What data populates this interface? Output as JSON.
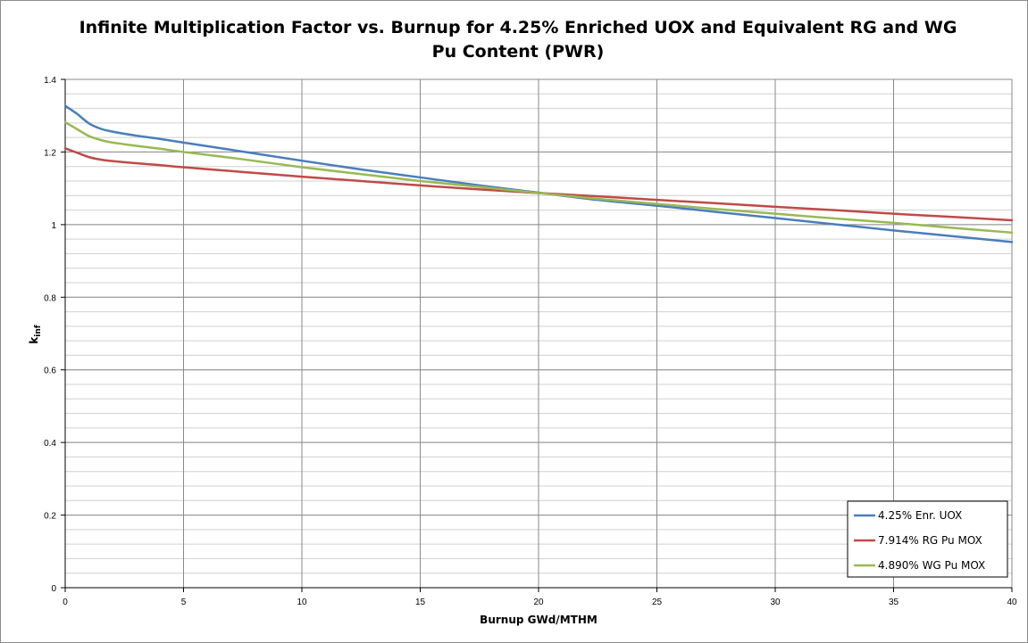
{
  "chart_data": {
    "type": "line",
    "title_line1": "Infinite Multiplication Factor vs. Burnup for 4.25% Enriched UOX and Equivalent RG and WG",
    "title_line2": "Pu Content (PWR)",
    "xlabel": "Burnup GWd/MTHM",
    "ylabel_main": "k",
    "ylabel_sub": "inf",
    "xlim": [
      0,
      40
    ],
    "ylim": [
      0,
      1.4
    ],
    "x_major_ticks": [
      0,
      5,
      10,
      15,
      20,
      25,
      30,
      35,
      40
    ],
    "x_tick_labels": [
      "0",
      "5",
      "10",
      "15",
      "20",
      "25",
      "30",
      "35",
      "40"
    ],
    "y_major_ticks": [
      0,
      0.2,
      0.4,
      0.6,
      0.8,
      1.0,
      1.2,
      1.4
    ],
    "y_tick_labels": [
      "0",
      "0.2",
      "0.4",
      "0.6",
      "0.8",
      "1",
      "1.2",
      "1.4"
    ],
    "y_minor_step": 0.04,
    "grid": true,
    "legend_position": "bottom-right",
    "series": [
      {
        "name": "4.25% Enr. UOX",
        "color": "#4a7ebb",
        "x": [
          0,
          0.5,
          1,
          1.5,
          2,
          3,
          4,
          5,
          7.5,
          10,
          12.5,
          15,
          17.5,
          20,
          22.5,
          25,
          27.5,
          30,
          32.5,
          35,
          37.5,
          40
        ],
        "y": [
          1.327,
          1.305,
          1.279,
          1.264,
          1.256,
          1.245,
          1.236,
          1.226,
          1.201,
          1.176,
          1.152,
          1.13,
          1.108,
          1.088,
          1.068,
          1.052,
          1.035,
          1.018,
          1.001,
          0.984,
          0.968,
          0.952
        ]
      },
      {
        "name": "7.914% RG Pu MOX",
        "color": "#be4b48",
        "x": [
          0,
          0.5,
          1,
          1.5,
          2,
          3,
          4,
          5,
          7.5,
          10,
          12.5,
          15,
          17.5,
          20,
          22.5,
          25,
          27.5,
          30,
          32.5,
          35,
          37.5,
          40
        ],
        "y": [
          1.21,
          1.198,
          1.186,
          1.179,
          1.175,
          1.169,
          1.164,
          1.158,
          1.145,
          1.132,
          1.12,
          1.108,
          1.097,
          1.087,
          1.078,
          1.068,
          1.059,
          1.049,
          1.04,
          1.03,
          1.021,
          1.012
        ]
      },
      {
        "name": "4.890% WG Pu MOX",
        "color": "#98b954",
        "x": [
          0,
          0.5,
          1,
          1.5,
          2,
          3,
          4,
          5,
          7.5,
          10,
          12.5,
          15,
          17.5,
          20,
          22.5,
          25,
          27.5,
          30,
          32.5,
          35,
          37.5,
          40
        ],
        "y": [
          1.282,
          1.263,
          1.244,
          1.233,
          1.226,
          1.217,
          1.209,
          1.2,
          1.18,
          1.158,
          1.139,
          1.12,
          1.104,
          1.087,
          1.071,
          1.057,
          1.043,
          1.03,
          1.017,
          1.005,
          0.991,
          0.978
        ]
      }
    ]
  }
}
